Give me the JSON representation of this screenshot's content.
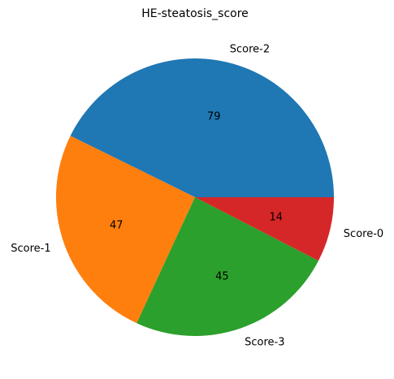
{
  "chart_data": {
    "type": "pie",
    "title": "HE-steatosis_score",
    "labels": [
      "Score-2",
      "Score-1",
      "Score-3",
      "Score-0"
    ],
    "values": [
      79,
      47,
      45,
      14
    ],
    "colors": [
      "#1f77b4",
      "#ff7f0e",
      "#2ca02c",
      "#d62728"
    ],
    "start_angle_deg": 0,
    "direction": "counterclockwise"
  }
}
